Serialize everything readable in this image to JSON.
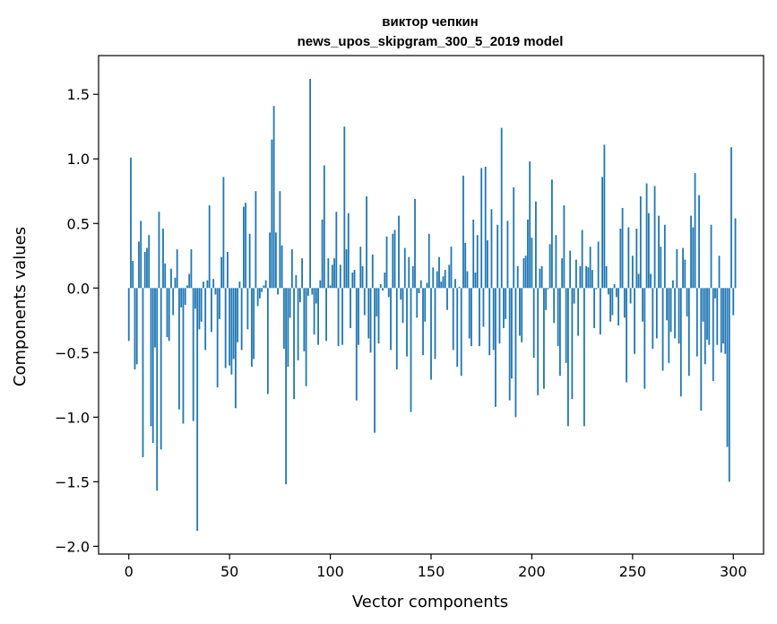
{
  "chart_data": {
    "type": "bar",
    "title": "виктор чепкин",
    "subtitle": "news_upos_skipgram_300_5_2019 model",
    "xlabel": "Vector components",
    "ylabel": "Components values",
    "xlim": [
      -15,
      315
    ],
    "ylim": [
      -2.06,
      1.8
    ],
    "xticks": [
      0,
      50,
      100,
      150,
      200,
      250,
      300
    ],
    "yticks": [
      -2.0,
      -1.5,
      -1.0,
      -0.5,
      0.0,
      0.5,
      1.0,
      1.5
    ],
    "ytick_labels": [
      "−2.0",
      "−1.5",
      "−1.0",
      "−0.5",
      "0.0",
      "0.5",
      "1.0",
      "1.5"
    ],
    "bar_color": "#1f77b4",
    "grid": false,
    "x": "0..299 (component index)",
    "values": [
      -0.41,
      1.01,
      0.21,
      -0.63,
      -0.59,
      0.36,
      0.52,
      -1.31,
      0.28,
      0.31,
      0.41,
      -1.07,
      -1.2,
      -0.46,
      -1.57,
      0.59,
      -1.25,
      0.46,
      0.19,
      -0.38,
      -0.41,
      0.15,
      -0.21,
      0.08,
      0.3,
      -0.94,
      -0.15,
      -1.05,
      -0.13,
      0.02,
      0.11,
      0.3,
      -1.03,
      -0.16,
      -1.88,
      -0.32,
      -0.26,
      0.05,
      -0.48,
      0.06,
      0.64,
      -0.34,
      0.07,
      -0.05,
      -0.77,
      -0.24,
      0.24,
      0.86,
      -0.62,
      0.28,
      -0.6,
      -0.67,
      -0.55,
      -0.93,
      -0.42,
      0.05,
      -0.48,
      0.63,
      0.66,
      -0.32,
      0.42,
      -0.61,
      -0.55,
      0.75,
      -0.14,
      -0.08,
      -0.03,
      0.02,
      0.06,
      -0.82,
      0.43,
      1.15,
      1.41,
      0.43,
      -0.05,
      0.75,
      0.33,
      -0.47,
      -1.52,
      -0.61,
      -0.23,
      0.3,
      -0.86,
      0.1,
      -0.56,
      -0.11,
      0.23,
      -0.49,
      -0.76,
      -0.06,
      1.62,
      -0.05,
      -0.36,
      -0.12,
      -0.44,
      0.06,
      0.53,
      0.95,
      -0.41,
      0.23,
      0.02,
      0.18,
      0.23,
      0.59,
      -0.45,
      0.18,
      -0.44,
      1.25,
      0.3,
      0.58,
      -0.31,
      0.12,
      0.14,
      -0.87,
      -0.44,
      0.32,
      0.17,
      -0.21,
      0.71,
      -0.39,
      -0.5,
      0.26,
      -1.12,
      -0.22,
      -0.43,
      0.03,
      -0.02,
      0.12,
      0.4,
      -0.07,
      -0.48,
      0.42,
      0.45,
      -0.63,
      0.56,
      -0.09,
      -0.27,
      0.31,
      -0.53,
      0.24,
      -0.96,
      0.17,
      0.69,
      -0.23,
      -0.04,
      0.06,
      -0.52,
      -0.26,
      0.04,
      0.42,
      -0.71,
      0.16,
      -0.55,
      0.13,
      0.24,
      0.05,
      0.09,
      0.14,
      -0.17,
      0.18,
      0.32,
      -0.48,
      0.07,
      -0.61,
      0.01,
      -0.68,
      0.87,
      0.35,
      0.13,
      -0.39,
      -0.45,
      0.53,
      0.12,
      0.41,
      -0.45,
      0.93,
      -0.3,
      0.94,
      0.37,
      -0.52,
      0.61,
      -0.48,
      -0.92,
      0.49,
      -0.43,
      1.24,
      -0.31,
      -0.24,
      0.52,
      -0.87,
      -0.7,
      0.78,
      -1.0,
      0.17,
      -0.37,
      -0.42,
      0.23,
      0.25,
      0.53,
      0.98,
      0.39,
      -0.54,
      0.67,
      -0.83,
      0.15,
      0.17,
      -0.78,
      -0.17,
      -0.01,
      0.34,
      0.84,
      -0.27,
      0.41,
      -0.45,
      -0.68,
      0.23,
      0.64,
      -0.58,
      -1.07,
      0.29,
      -0.86,
      -0.12,
      0.22,
      -0.37,
      0.17,
      0.45,
      -1.07,
      0.17,
      0.16,
      0.32,
      0.14,
      -0.31,
      -0.01,
      0.36,
      -0.36,
      0.86,
      1.11,
      0.17,
      -0.05,
      -0.26,
      -0.21,
      0.03,
      -0.07,
      -0.29,
      0.46,
      0.62,
      -0.23,
      -0.73,
      0.47,
      -0.12,
      0.25,
      -0.51,
      0.46,
      0.11,
      0.71,
      -0.26,
      -0.78,
      0.81,
      0.58,
      0.11,
      -0.47,
      0.79,
      -0.39,
      0.56,
      0.32,
      -0.64,
      0.49,
      -0.25,
      -0.58,
      -0.34,
      0.06,
      -0.39,
      0.3,
      -0.43,
      -0.84,
      0.31,
      0.22,
      -0.22,
      -0.68,
      0.56,
      0.47,
      0.89,
      -0.53,
      0.72,
      -0.95,
      -0.26,
      -0.59,
      -0.4,
      -0.44,
      0.49,
      -0.72,
      -0.08,
      -0.44,
      0.25,
      -0.5,
      -0.43,
      -0.51,
      -1.23,
      -1.5,
      1.09,
      -0.21,
      0.54
    ]
  }
}
